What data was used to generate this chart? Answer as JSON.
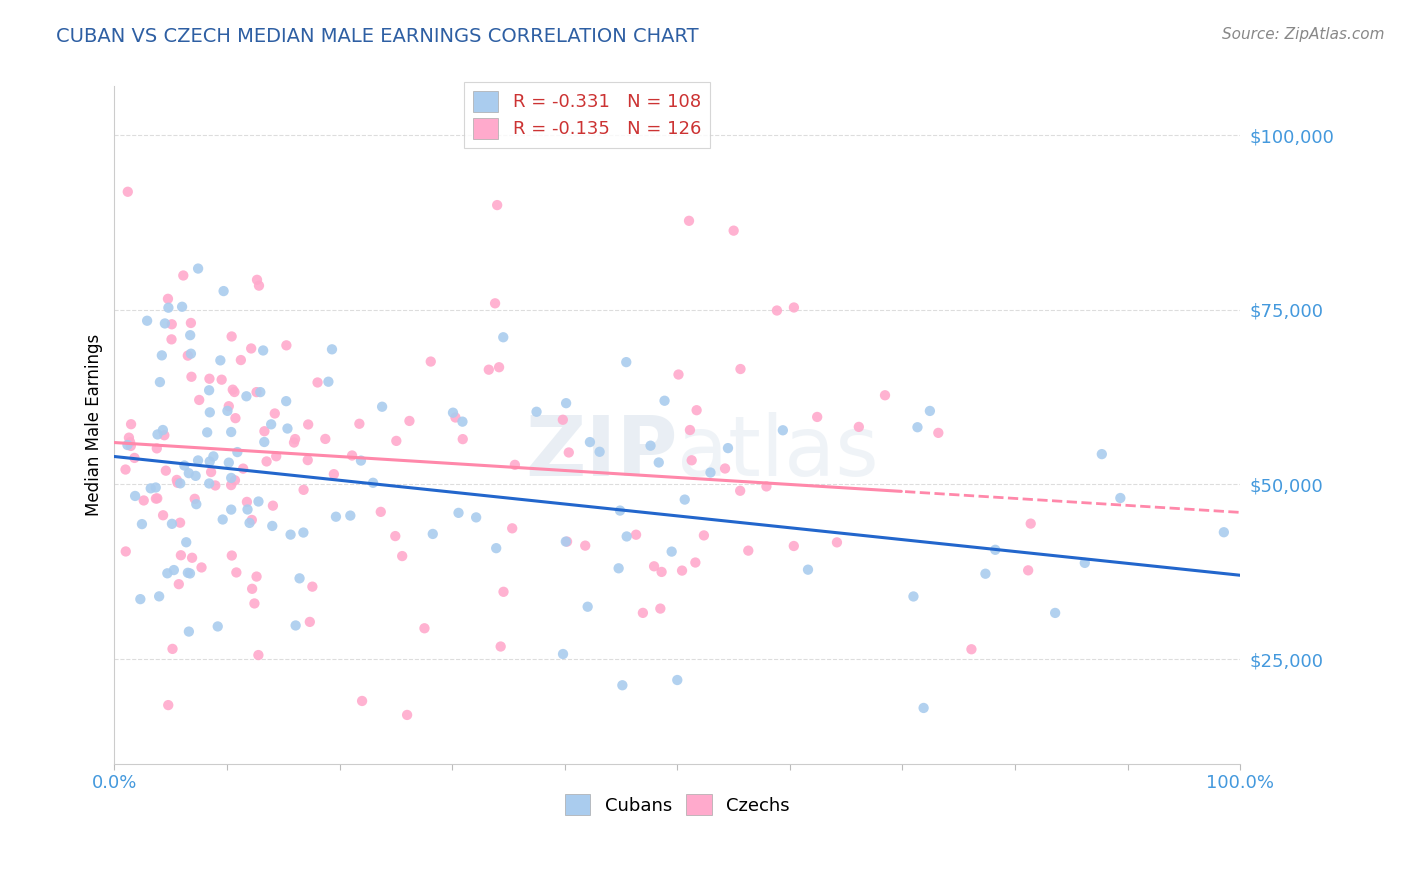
{
  "title": "CUBAN VS CZECH MEDIAN MALE EARNINGS CORRELATION CHART",
  "source": "Source: ZipAtlas.com",
  "ylabel": "Median Male Earnings",
  "xlim": [
    0.0,
    1.0
  ],
  "ylim": [
    10000,
    107000
  ],
  "yticks": [
    25000,
    50000,
    75000,
    100000
  ],
  "ytick_labels": [
    "$25,000",
    "$50,000",
    "$75,000",
    "$100,000"
  ],
  "title_color": "#2e5fa3",
  "source_color": "#888888",
  "yticklabel_color": "#4499dd",
  "xticklabel_color": "#4499dd",
  "cuban_color": "#aaccee",
  "czech_color": "#ffaacc",
  "cuban_line_color": "#2266cc",
  "czech_line_color": "#ff88aa",
  "grid_color": "#dddddd",
  "background_color": "#ffffff",
  "watermark_color": "#dddddd",
  "cuban_intercept": 54000,
  "cuban_slope": -17000,
  "czech_intercept": 56000,
  "czech_slope": -10000,
  "legend_label1": "R = -0.331   N = 108",
  "legend_label2": "R = -0.135   N = 126",
  "legend_text_color": "#cc3333",
  "legend_N_color": "#2266cc",
  "bottom_legend_cubans": "Cubans",
  "bottom_legend_czechs": "Czechs"
}
